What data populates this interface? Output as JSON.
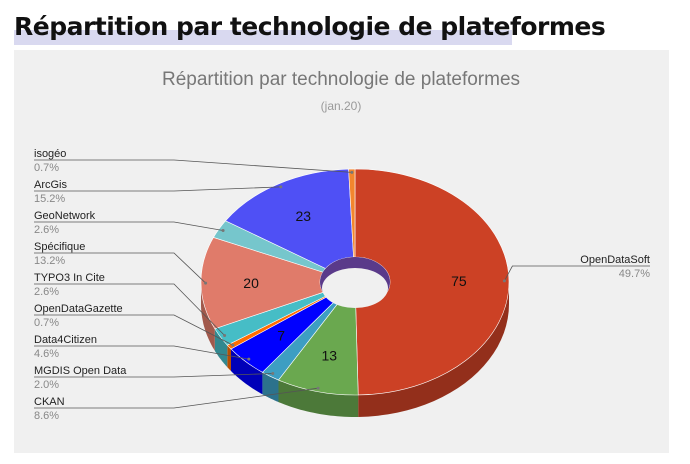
{
  "page": {
    "heading": "Répartition par technologie de plateformes"
  },
  "chart_data": {
    "type": "pie",
    "title": "Répartition par technologie de plateformes",
    "subtitle": "(jan.20)",
    "style": "3d-donut",
    "legend": "leader-lines",
    "series": [
      {
        "name": "",
        "slices": [
          {
            "label": "OpenDataSoft",
            "value": 75,
            "percent": "49.7%",
            "color": "#cc4125",
            "show_value": true
          },
          {
            "label": "CKAN",
            "value": 13,
            "percent": "8.6%",
            "color": "#6aa84f",
            "show_value": true
          },
          {
            "label": "MGDIS Open Data",
            "value": 3,
            "percent": "2.0%",
            "color": "#3d9ec2",
            "show_value": false
          },
          {
            "label": "Data4Citizen",
            "value": 7,
            "percent": "4.6%",
            "color": "#0000ff",
            "show_value": true
          },
          {
            "label": "OpenDataGazette",
            "value": 1,
            "percent": "0.7%",
            "color": "#ff6d01",
            "show_value": false
          },
          {
            "label": "TYPO3 In Cite",
            "value": 4,
            "percent": "2.6%",
            "color": "#46bdc6",
            "show_value": false
          },
          {
            "label": "Spécifique",
            "value": 20,
            "percent": "13.2%",
            "color": "#e07b6a",
            "show_value": true
          },
          {
            "label": "GeoNetwork",
            "value": 4,
            "percent": "2.6%",
            "color": "#76c6cc",
            "show_value": false
          },
          {
            "label": "ArcGis",
            "value": 23,
            "percent": "15.2%",
            "color": "#4f50f5",
            "show_value": true
          },
          {
            "label": "isogéo",
            "value": 1,
            "percent": "0.7%",
            "color": "#f2862e",
            "show_value": false
          }
        ]
      }
    ]
  }
}
